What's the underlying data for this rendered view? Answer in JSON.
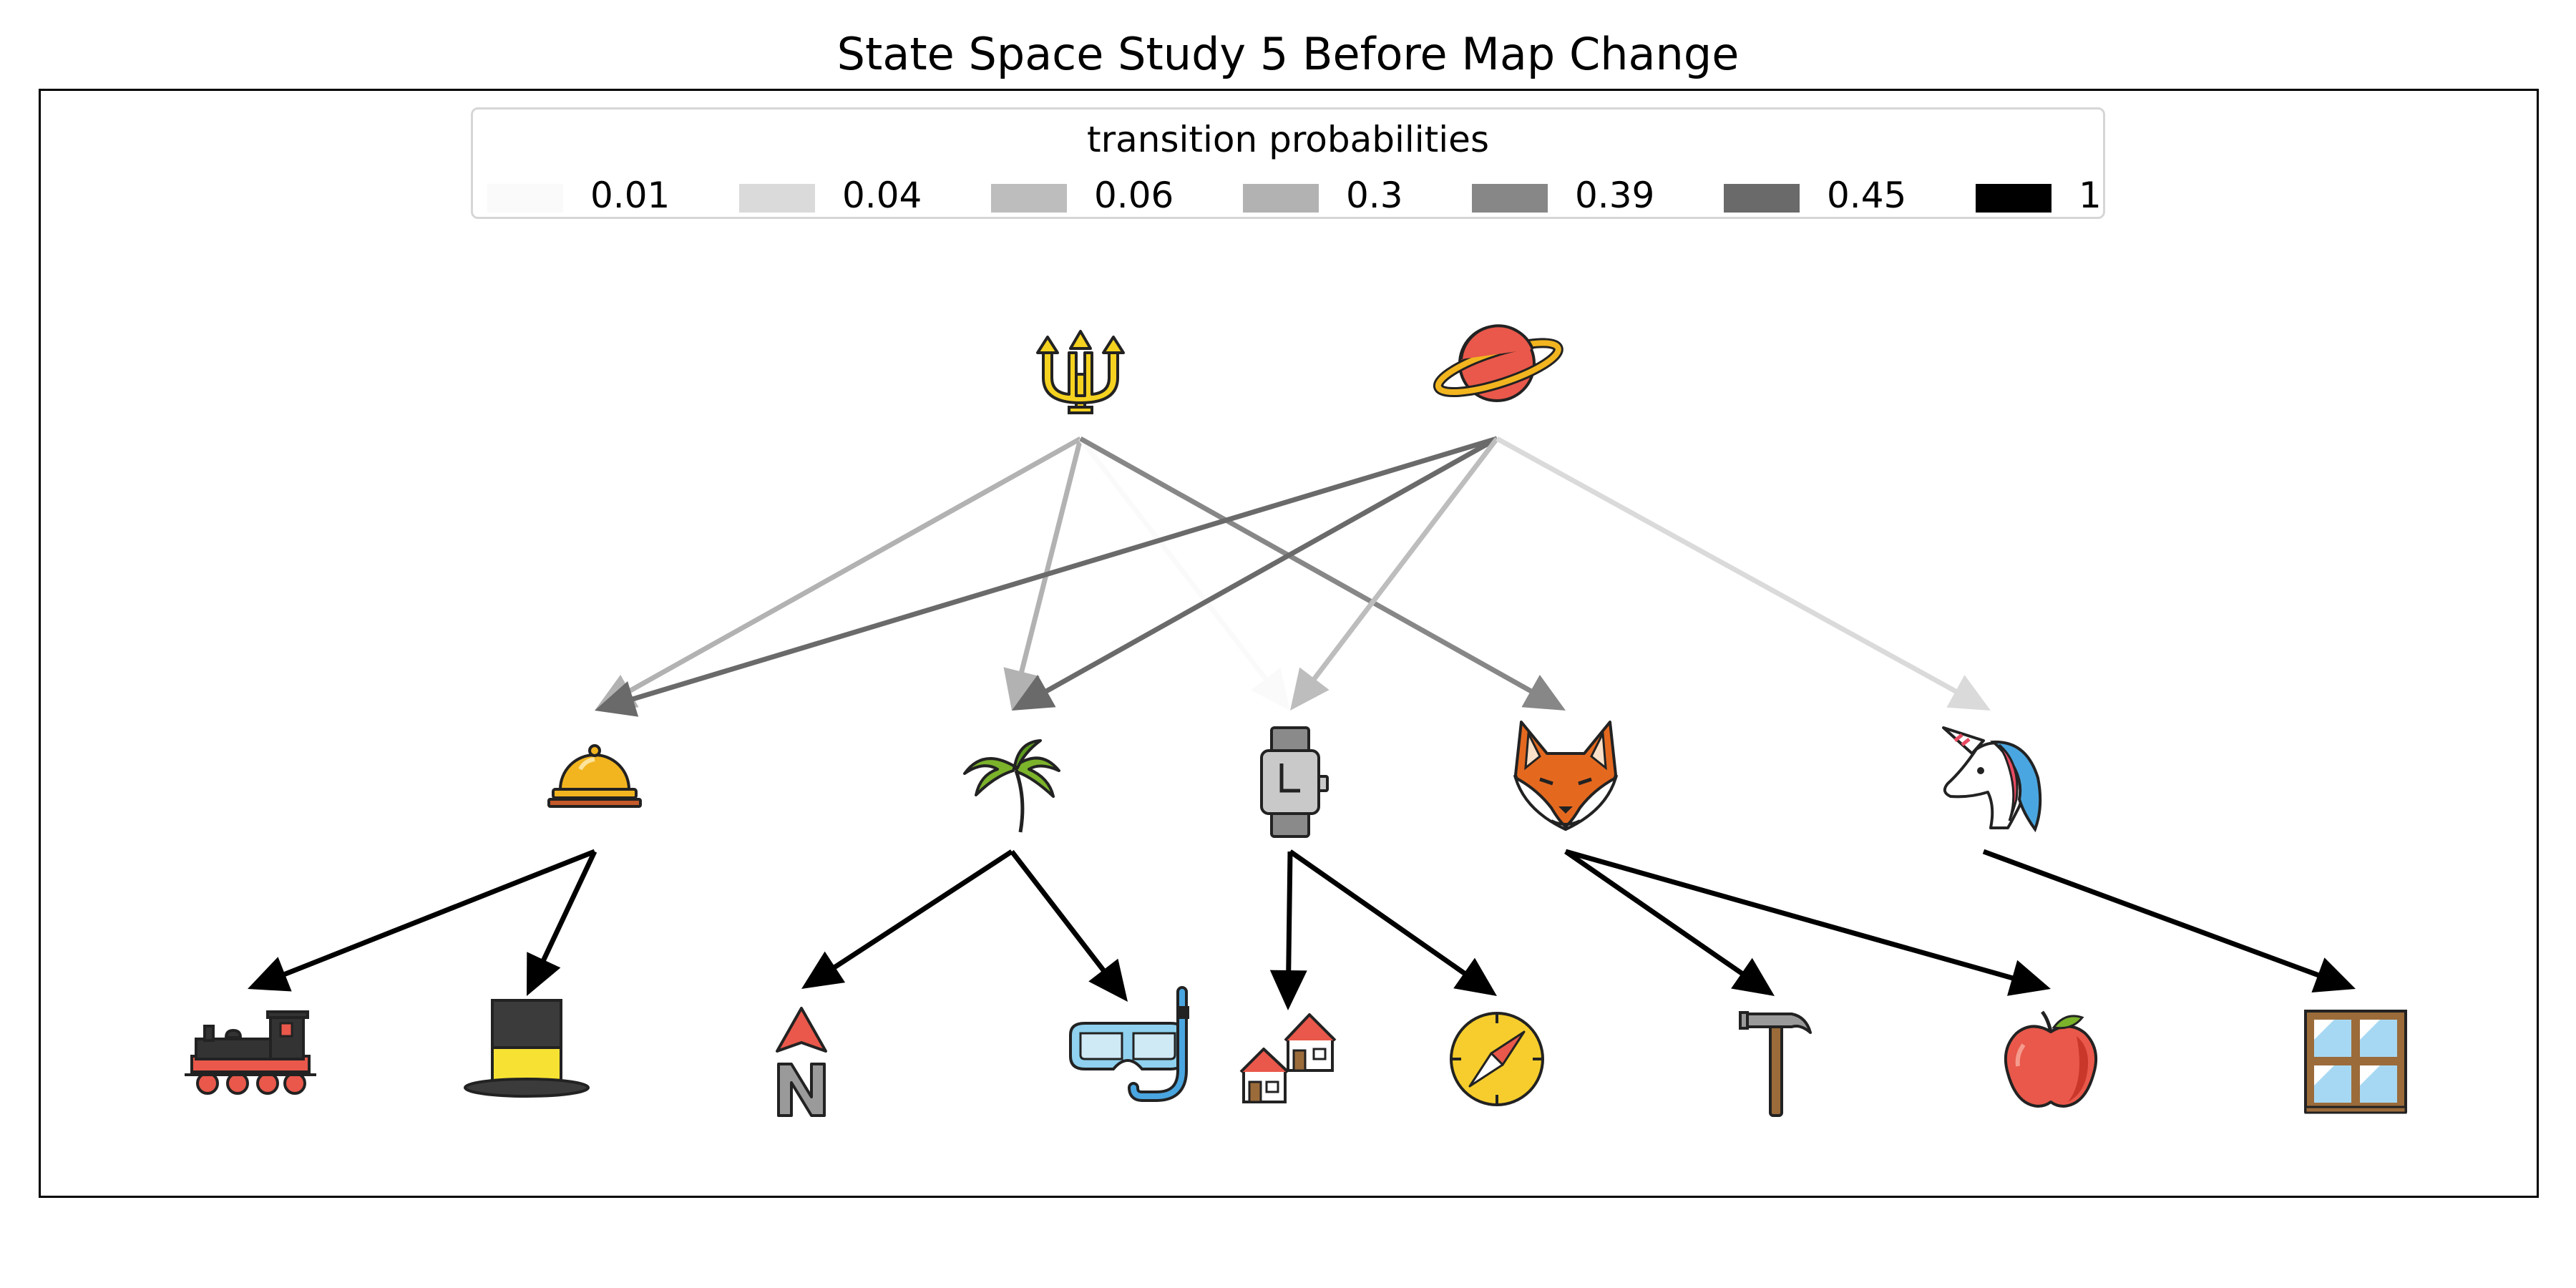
{
  "title": "State Space Study 5 Before Map Change",
  "legend": {
    "title": "transition probabilities",
    "entries": [
      {
        "label": "0.01",
        "color": "#fafafa"
      },
      {
        "label": "0.04",
        "color": "#dadada"
      },
      {
        "label": "0.06",
        "color": "#bdbdbd"
      },
      {
        "label": "0.3",
        "color": "#b2b2b2"
      },
      {
        "label": "0.39",
        "color": "#878787"
      },
      {
        "label": "0.45",
        "color": "#6a6a6a"
      },
      {
        "label": "1",
        "color": "#000000"
      }
    ]
  },
  "nodes": {
    "top": [
      {
        "id": "trident",
        "icon": "trident-icon"
      },
      {
        "id": "planet",
        "icon": "ringed-planet-icon"
      }
    ],
    "middle": [
      {
        "id": "bell",
        "icon": "bellhop-bell-icon"
      },
      {
        "id": "palm",
        "icon": "palm-tree-icon"
      },
      {
        "id": "watch",
        "icon": "watch-icon"
      },
      {
        "id": "fox",
        "icon": "fox-icon"
      },
      {
        "id": "unicorn",
        "icon": "unicorn-icon"
      }
    ],
    "bottom": [
      {
        "id": "locomotive",
        "icon": "locomotive-icon"
      },
      {
        "id": "tophat",
        "icon": "top-hat-icon"
      },
      {
        "id": "north",
        "icon": "north-arrow-icon"
      },
      {
        "id": "mask",
        "icon": "diving-mask-icon"
      },
      {
        "id": "houses",
        "icon": "houses-icon"
      },
      {
        "id": "compass",
        "icon": "compass-icon"
      },
      {
        "id": "hammer",
        "icon": "hammer-icon"
      },
      {
        "id": "apple",
        "icon": "apple-icon"
      },
      {
        "id": "window",
        "icon": "window-icon"
      }
    ]
  },
  "edges": [
    {
      "from": "trident",
      "to": "bell",
      "probability": 0.3
    },
    {
      "from": "trident",
      "to": "palm",
      "probability": 0.3
    },
    {
      "from": "trident",
      "to": "watch",
      "probability": 0.01
    },
    {
      "from": "trident",
      "to": "fox",
      "probability": 0.39
    },
    {
      "from": "planet",
      "to": "bell",
      "probability": 0.45
    },
    {
      "from": "planet",
      "to": "palm",
      "probability": 0.45
    },
    {
      "from": "planet",
      "to": "watch",
      "probability": 0.06
    },
    {
      "from": "planet",
      "to": "unicorn",
      "probability": 0.04
    },
    {
      "from": "bell",
      "to": "locomotive",
      "probability": 1
    },
    {
      "from": "bell",
      "to": "tophat",
      "probability": 1
    },
    {
      "from": "palm",
      "to": "north",
      "probability": 1
    },
    {
      "from": "palm",
      "to": "mask",
      "probability": 1
    },
    {
      "from": "watch",
      "to": "houses",
      "probability": 1
    },
    {
      "from": "watch",
      "to": "compass",
      "probability": 1
    },
    {
      "from": "fox",
      "to": "hammer",
      "probability": 1
    },
    {
      "from": "fox",
      "to": "apple",
      "probability": 1
    },
    {
      "from": "unicorn",
      "to": "window",
      "probability": 1
    }
  ]
}
